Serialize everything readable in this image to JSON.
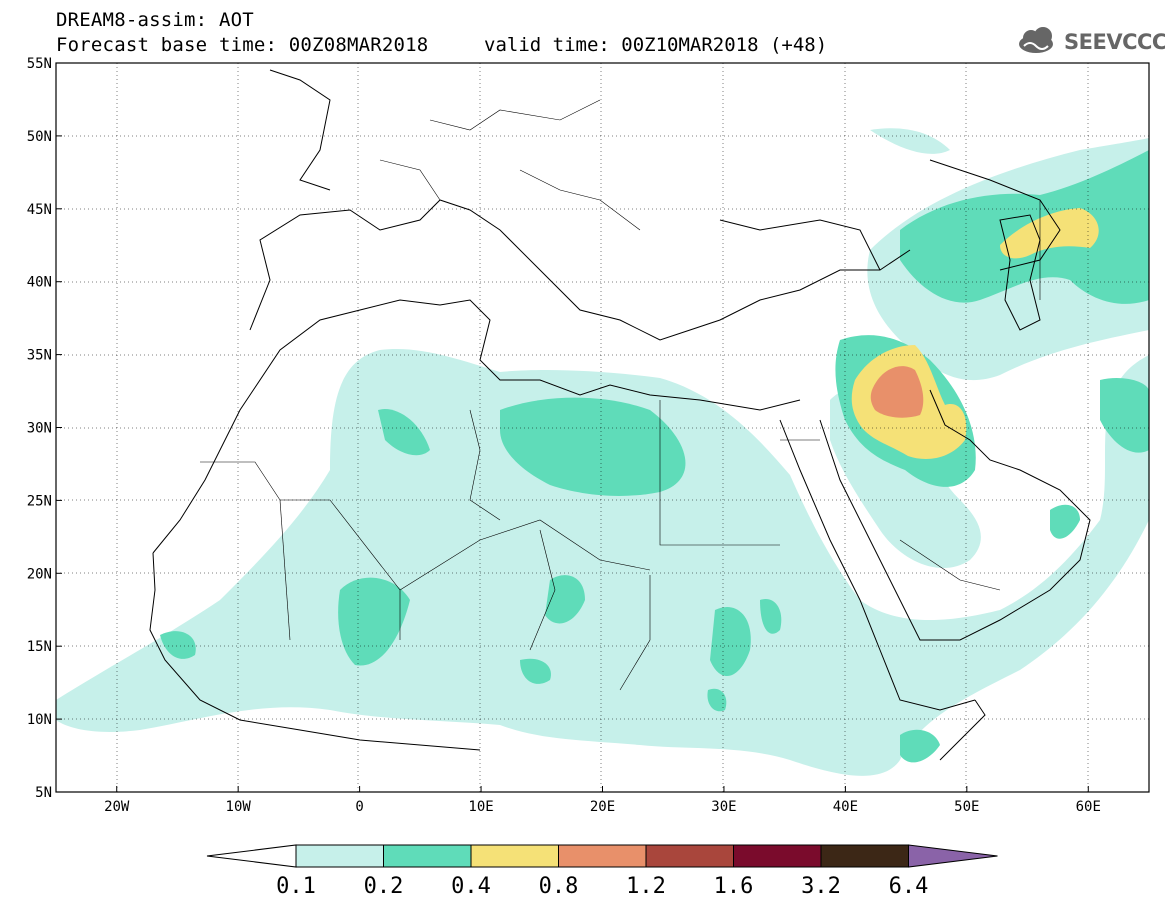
{
  "header": {
    "title": "DREAM8-assim: AOT",
    "base_time": "Forecast base time: 00Z08MAR2018",
    "valid_time": "valid time: 00Z10MAR2018 (+48)",
    "logo_text": "SEEVCCC"
  },
  "map": {
    "lon_range": [
      -25,
      65
    ],
    "lat_range": [
      5,
      55
    ],
    "lat_ticks": [
      {
        "value": 55,
        "label": "55N"
      },
      {
        "value": 50,
        "label": "50N"
      },
      {
        "value": 45,
        "label": "45N"
      },
      {
        "value": 40,
        "label": "40N"
      },
      {
        "value": 35,
        "label": "35N"
      },
      {
        "value": 30,
        "label": "30N"
      },
      {
        "value": 25,
        "label": "25N"
      },
      {
        "value": 20,
        "label": "20N"
      },
      {
        "value": 15,
        "label": "15N"
      },
      {
        "value": 10,
        "label": "10N"
      },
      {
        "value": 5,
        "label": "5N"
      }
    ],
    "lon_ticks": [
      {
        "value": -20,
        "label": "20W"
      },
      {
        "value": -10,
        "label": "10W"
      },
      {
        "value": 0,
        "label": "0"
      },
      {
        "value": 10,
        "label": "10E"
      },
      {
        "value": 20,
        "label": "20E"
      },
      {
        "value": 30,
        "label": "30E"
      },
      {
        "value": 40,
        "label": "40E"
      },
      {
        "value": 50,
        "label": "50E"
      },
      {
        "value": 60,
        "label": "60E"
      }
    ]
  },
  "colorbar": {
    "levels": [
      "0.1",
      "0.2",
      "0.4",
      "0.8",
      "1.2",
      "1.6",
      "3.2",
      "6.4"
    ],
    "colors": {
      "low_arrow": "#ffffff",
      "b1": "#c6f0ea",
      "b2": "#5fdcb9",
      "b3": "#f5e177",
      "b4": "#e8906a",
      "b5": "#a9463c",
      "b6": "#7a0b2c",
      "b7": "#3c2716",
      "high_arrow": "#8a63a8"
    }
  }
}
